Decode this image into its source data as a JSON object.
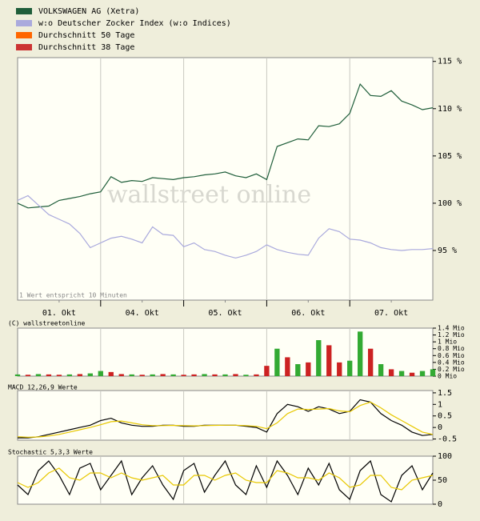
{
  "chart_data": [
    {
      "type": "line",
      "watermark": "wallstreet online",
      "annotation": "1 Wert entspricht 10 Minuten",
      "x": [
        0,
        0.125,
        0.25,
        0.375,
        0.5,
        0.625,
        0.75,
        0.875,
        1,
        1.125,
        1.25,
        1.375,
        1.5,
        1.625,
        1.75,
        1.875,
        2,
        2.125,
        2.25,
        2.375,
        2.5,
        2.625,
        2.75,
        2.875,
        3,
        3.125,
        3.25,
        3.375,
        3.5,
        3.625,
        3.75,
        3.875,
        4,
        4.125,
        4.25,
        4.375,
        4.5,
        4.625,
        4.75,
        4.875,
        5
      ],
      "xlim": [
        0,
        5
      ],
      "xticks": [
        {
          "value": 0.5,
          "label": "01. Okt"
        },
        {
          "value": 1.5,
          "label": "04. Okt"
        },
        {
          "value": 2.5,
          "label": "05. Okt"
        },
        {
          "value": 3.5,
          "label": "06. Okt"
        },
        {
          "value": 4.5,
          "label": "07. Okt"
        }
      ],
      "ylim": [
        89.75,
        115.4
      ],
      "yticks": [
        {
          "value": 115,
          "label": "115 %"
        },
        {
          "value": 110,
          "label": "110 %"
        },
        {
          "value": 105,
          "label": "105 %"
        },
        {
          "value": 100,
          "label": "100 %"
        },
        {
          "value": 95,
          "label": "95 %"
        }
      ],
      "series": [
        {
          "name": "VOLKSWAGEN AG (Xetra)",
          "color": "#1f5e3a",
          "values": [
            100,
            99.5,
            99.6,
            99.7,
            100.3,
            100.5,
            100.7,
            101,
            101.2,
            102.8,
            102.2,
            102.4,
            102.3,
            102.7,
            102.6,
            102.5,
            102.7,
            102.8,
            103,
            103.1,
            103.3,
            102.9,
            102.7,
            103.1,
            102.5,
            106,
            106.4,
            106.8,
            106.7,
            108.2,
            108.1,
            108.4,
            109.5,
            112.6,
            111.4,
            111.3,
            111.9,
            110.8,
            110.4,
            109.9,
            110.1
          ]
        },
        {
          "name": "w:o Deutscher Zocker Index (w:o Indices)",
          "color": "#aaaadd",
          "values": [
            100.3,
            100.8,
            99.8,
            98.8,
            98.3,
            97.8,
            96.8,
            95.3,
            95.8,
            96.3,
            96.5,
            96.2,
            95.8,
            97.5,
            96.7,
            96.6,
            95.4,
            95.8,
            95.1,
            94.9,
            94.5,
            94.2,
            94.5,
            94.9,
            95.6,
            95.1,
            94.8,
            94.6,
            94.5,
            96.3,
            97.3,
            97,
            96.2,
            96.1,
            95.8,
            95.3,
            95.1,
            95,
            95.1,
            95.1,
            95.2
          ]
        },
        {
          "name": "Durchschnitt 50 Tage",
          "color": "#ff6600",
          "values": [
            null,
            null,
            null,
            null,
            null,
            null,
            null,
            null,
            null,
            null,
            null,
            null,
            null,
            null,
            null,
            null,
            null,
            null,
            null,
            null,
            null,
            null,
            null,
            null,
            null,
            null,
            null,
            null,
            null,
            null,
            null,
            null,
            null,
            null,
            null,
            null,
            null,
            null,
            null,
            null,
            null
          ]
        },
        {
          "name": "Durchschnitt 38 Tage",
          "color": "#cc3333",
          "values": [
            null,
            null,
            null,
            null,
            null,
            null,
            null,
            null,
            null,
            null,
            null,
            null,
            null,
            null,
            null,
            null,
            null,
            null,
            null,
            null,
            null,
            null,
            null,
            null,
            null,
            null,
            null,
            null,
            null,
            null,
            null,
            null,
            null,
            null,
            null,
            null,
            null,
            null,
            null,
            null,
            null
          ]
        }
      ]
    },
    {
      "type": "bar",
      "title": "(C) wallstreetonline",
      "x": [
        0,
        0.125,
        0.25,
        0.375,
        0.5,
        0.625,
        0.75,
        0.875,
        1,
        1.125,
        1.25,
        1.375,
        1.5,
        1.625,
        1.75,
        1.875,
        2,
        2.125,
        2.25,
        2.375,
        2.5,
        2.625,
        2.75,
        2.875,
        3,
        3.125,
        3.25,
        3.375,
        3.5,
        3.625,
        3.75,
        3.875,
        4,
        4.125,
        4.25,
        4.375,
        4.5,
        4.625,
        4.75,
        4.875,
        5
      ],
      "xlim": [
        0,
        5
      ],
      "values": [
        0.05,
        0.04,
        0.06,
        0.05,
        0.04,
        0.05,
        0.06,
        0.08,
        0.15,
        0.12,
        0.06,
        0.05,
        0.04,
        0.05,
        0.06,
        0.05,
        0.04,
        0.05,
        0.06,
        0.05,
        0.05,
        0.06,
        0.04,
        0.05,
        0.3,
        0.8,
        0.55,
        0.35,
        0.4,
        1.05,
        0.9,
        0.4,
        0.45,
        1.3,
        0.8,
        0.35,
        0.2,
        0.15,
        0.1,
        0.15,
        0.2
      ],
      "colors": [
        "#33aa33",
        "#cc2222",
        "#33aa33",
        "#cc2222",
        "#cc2222",
        "#33aa33",
        "#cc2222",
        "#33aa33",
        "#33aa33",
        "#cc2222",
        "#cc2222",
        "#33aa33",
        "#cc2222",
        "#33aa33",
        "#cc2222",
        "#33aa33",
        "#cc2222",
        "#cc2222",
        "#33aa33",
        "#cc2222",
        "#33aa33",
        "#cc2222",
        "#33aa33",
        "#cc2222",
        "#cc2222",
        "#33aa33",
        "#cc2222",
        "#33aa33",
        "#cc2222",
        "#33aa33",
        "#cc2222",
        "#cc2222",
        "#33aa33",
        "#33aa33",
        "#cc2222",
        "#33aa33",
        "#cc2222",
        "#33aa33",
        "#cc2222",
        "#33aa33",
        "#33aa33"
      ],
      "ylim": [
        0,
        1.4
      ],
      "yticks": [
        {
          "value": 1.4,
          "label": "1.4 Mio"
        },
        {
          "value": 1.2,
          "label": "1.2 Mio"
        },
        {
          "value": 1,
          "label": "1 Mio"
        },
        {
          "value": 0.8,
          "label": "0.8 Mio"
        },
        {
          "value": 0.6,
          "label": "0.6 Mio"
        },
        {
          "value": 0.4,
          "label": "0.4 Mio"
        },
        {
          "value": 0.2,
          "label": "0.2 Mio"
        },
        {
          "value": 0,
          "label": "0 Mio"
        }
      ]
    },
    {
      "type": "line",
      "title": "MACD 12,26,9 Werte",
      "x": [
        0,
        0.125,
        0.25,
        0.375,
        0.5,
        0.625,
        0.75,
        0.875,
        1,
        1.125,
        1.25,
        1.375,
        1.5,
        1.625,
        1.75,
        1.875,
        2,
        2.125,
        2.25,
        2.375,
        2.5,
        2.625,
        2.75,
        2.875,
        3,
        3.125,
        3.25,
        3.375,
        3.5,
        3.625,
        3.75,
        3.875,
        4,
        4.125,
        4.25,
        4.375,
        4.5,
        4.625,
        4.75,
        4.875,
        5
      ],
      "xlim": [
        0,
        5
      ],
      "ylim": [
        -0.55,
        1.6
      ],
      "yticks": [
        1.5,
        1,
        0.5,
        0,
        -0.5
      ],
      "series": [
        {
          "color": "#000000",
          "values": [
            -0.45,
            -0.45,
            -0.4,
            -0.3,
            -0.2,
            -0.1,
            0,
            0.1,
            0.3,
            0.4,
            0.2,
            0.1,
            0.05,
            0.05,
            0.1,
            0.1,
            0.05,
            0.05,
            0.1,
            0.1,
            0.1,
            0.1,
            0.05,
            0,
            -0.2,
            0.6,
            1,
            0.9,
            0.7,
            0.9,
            0.8,
            0.6,
            0.7,
            1.2,
            1.1,
            0.6,
            0.3,
            0.1,
            -0.2,
            -0.35,
            -0.3
          ]
        },
        {
          "color": "#e8c800",
          "values": [
            -0.4,
            -0.42,
            -0.41,
            -0.37,
            -0.3,
            -0.2,
            -0.1,
            0,
            0.12,
            0.25,
            0.28,
            0.2,
            0.12,
            0.08,
            0.08,
            0.09,
            0.08,
            0.07,
            0.08,
            0.09,
            0.1,
            0.1,
            0.08,
            0.05,
            -0.05,
            0.2,
            0.6,
            0.8,
            0.78,
            0.8,
            0.82,
            0.72,
            0.68,
            0.95,
            1.1,
            0.85,
            0.55,
            0.3,
            0.05,
            -0.2,
            -0.3
          ]
        }
      ]
    },
    {
      "type": "line",
      "title": "Stochastic 5,3,3 Werte",
      "x": [
        0,
        0.125,
        0.25,
        0.375,
        0.5,
        0.625,
        0.75,
        0.875,
        1,
        1.125,
        1.25,
        1.375,
        1.5,
        1.625,
        1.75,
        1.875,
        2,
        2.125,
        2.25,
        2.375,
        2.5,
        2.625,
        2.75,
        2.875,
        3,
        3.125,
        3.25,
        3.375,
        3.5,
        3.625,
        3.75,
        3.875,
        4,
        4.125,
        4.25,
        4.375,
        4.5,
        4.625,
        4.75,
        4.875,
        5
      ],
      "xlim": [
        0,
        5
      ],
      "ylim": [
        0,
        100
      ],
      "yticks": [
        100,
        50,
        0
      ],
      "series": [
        {
          "color": "#000000",
          "values": [
            40,
            20,
            70,
            90,
            60,
            20,
            75,
            85,
            30,
            60,
            90,
            20,
            55,
            80,
            40,
            10,
            70,
            85,
            25,
            60,
            90,
            40,
            20,
            80,
            35,
            90,
            60,
            20,
            75,
            40,
            85,
            30,
            10,
            70,
            90,
            20,
            5,
            60,
            80,
            30,
            65
          ]
        },
        {
          "color": "#e8c800",
          "values": [
            45,
            35,
            45,
            65,
            75,
            55,
            50,
            65,
            65,
            55,
            65,
            55,
            50,
            55,
            60,
            40,
            40,
            60,
            60,
            50,
            60,
            65,
            50,
            45,
            45,
            70,
            65,
            55,
            55,
            50,
            65,
            55,
            35,
            40,
            60,
            60,
            35,
            30,
            50,
            55,
            60
          ]
        }
      ]
    }
  ]
}
